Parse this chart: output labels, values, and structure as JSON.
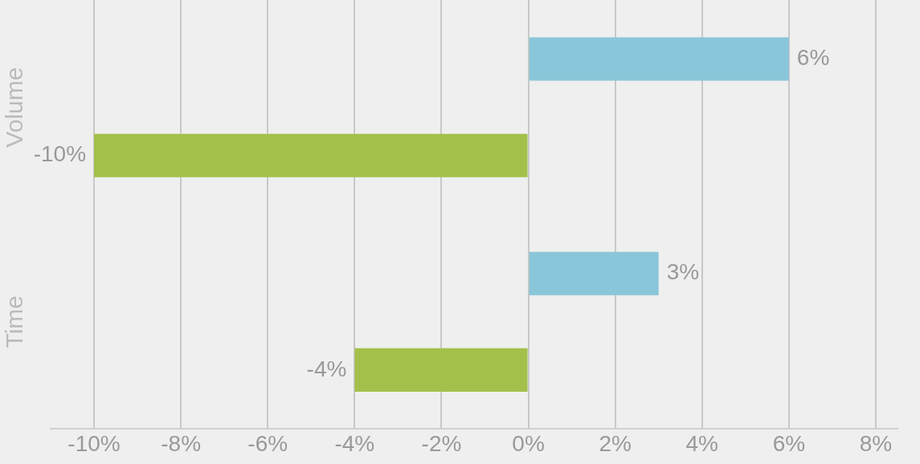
{
  "chart_data": {
    "type": "bar",
    "orientation": "horizontal",
    "categories": [
      "Volume",
      "Time"
    ],
    "series": [
      {
        "color": "#8ac6d9",
        "values": [
          6,
          3
        ]
      },
      {
        "color": "#a3c14a",
        "values": [
          -10,
          -4
        ]
      }
    ],
    "xlim": [
      -11,
      8.5
    ],
    "xticks": [
      {
        "value": -10,
        "label": "-10%"
      },
      {
        "value": -8,
        "label": "-8%"
      },
      {
        "value": -6,
        "label": "-6%"
      },
      {
        "value": -4,
        "label": "-4%"
      },
      {
        "value": -2,
        "label": "-2%"
      },
      {
        "value": 0,
        "label": "0%"
      },
      {
        "value": 2,
        "label": "2%"
      },
      {
        "value": 4,
        "label": "4%"
      },
      {
        "value": 6,
        "label": "6%"
      },
      {
        "value": 8,
        "label": "8%"
      }
    ],
    "value_labels": [
      [
        "6%",
        "3%"
      ],
      [
        "-10%",
        "-4%"
      ]
    ],
    "grid": "x",
    "legend": false
  }
}
